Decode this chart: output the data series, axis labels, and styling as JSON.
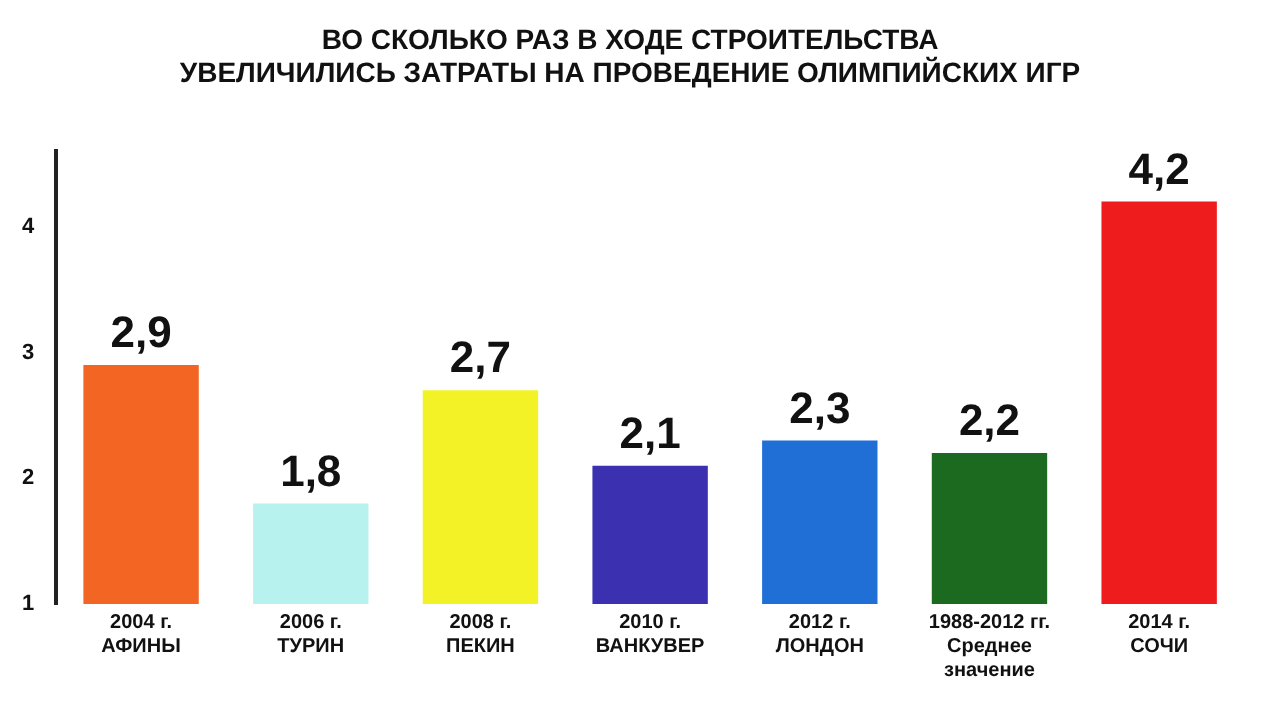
{
  "chart_data": {
    "type": "bar",
    "title": "ВО СКОЛЬКО РАЗ В ХОДЕ СТРОИТЕЛЬСТВА\nУВЕЛИЧИЛИСЬ ЗАТРАТЫ НА ПРОВЕДЕНИЕ ОЛИМПИЙСКИХ ИГР",
    "categories": [
      "2004 г.\nАФИНЫ",
      "2006 г.\nТУРИН",
      "2008 г.\nПЕКИН",
      "2010 г.\nВАНКУВЕР",
      "2012 г.\nЛОНДОН",
      "1988-2012 гг.\nСреднее\nзначение",
      "2014 г.\nСОЧИ"
    ],
    "values": [
      2.9,
      1.8,
      2.7,
      2.1,
      2.3,
      2.2,
      4.2
    ],
    "colors": [
      "#f26522",
      "#b8f2ee",
      "#f2f226",
      "#3a30b0",
      "#1f6fd6",
      "#1b6a20",
      "#ee1c1c"
    ],
    "value_labels": [
      "2,9",
      "1,8",
      "2,7",
      "2,1",
      "2,3",
      "2,2",
      "4,2"
    ],
    "ylim": [
      1,
      4.6
    ],
    "yticks": [
      1,
      2,
      3,
      4
    ],
    "grid": false,
    "legend": false
  }
}
